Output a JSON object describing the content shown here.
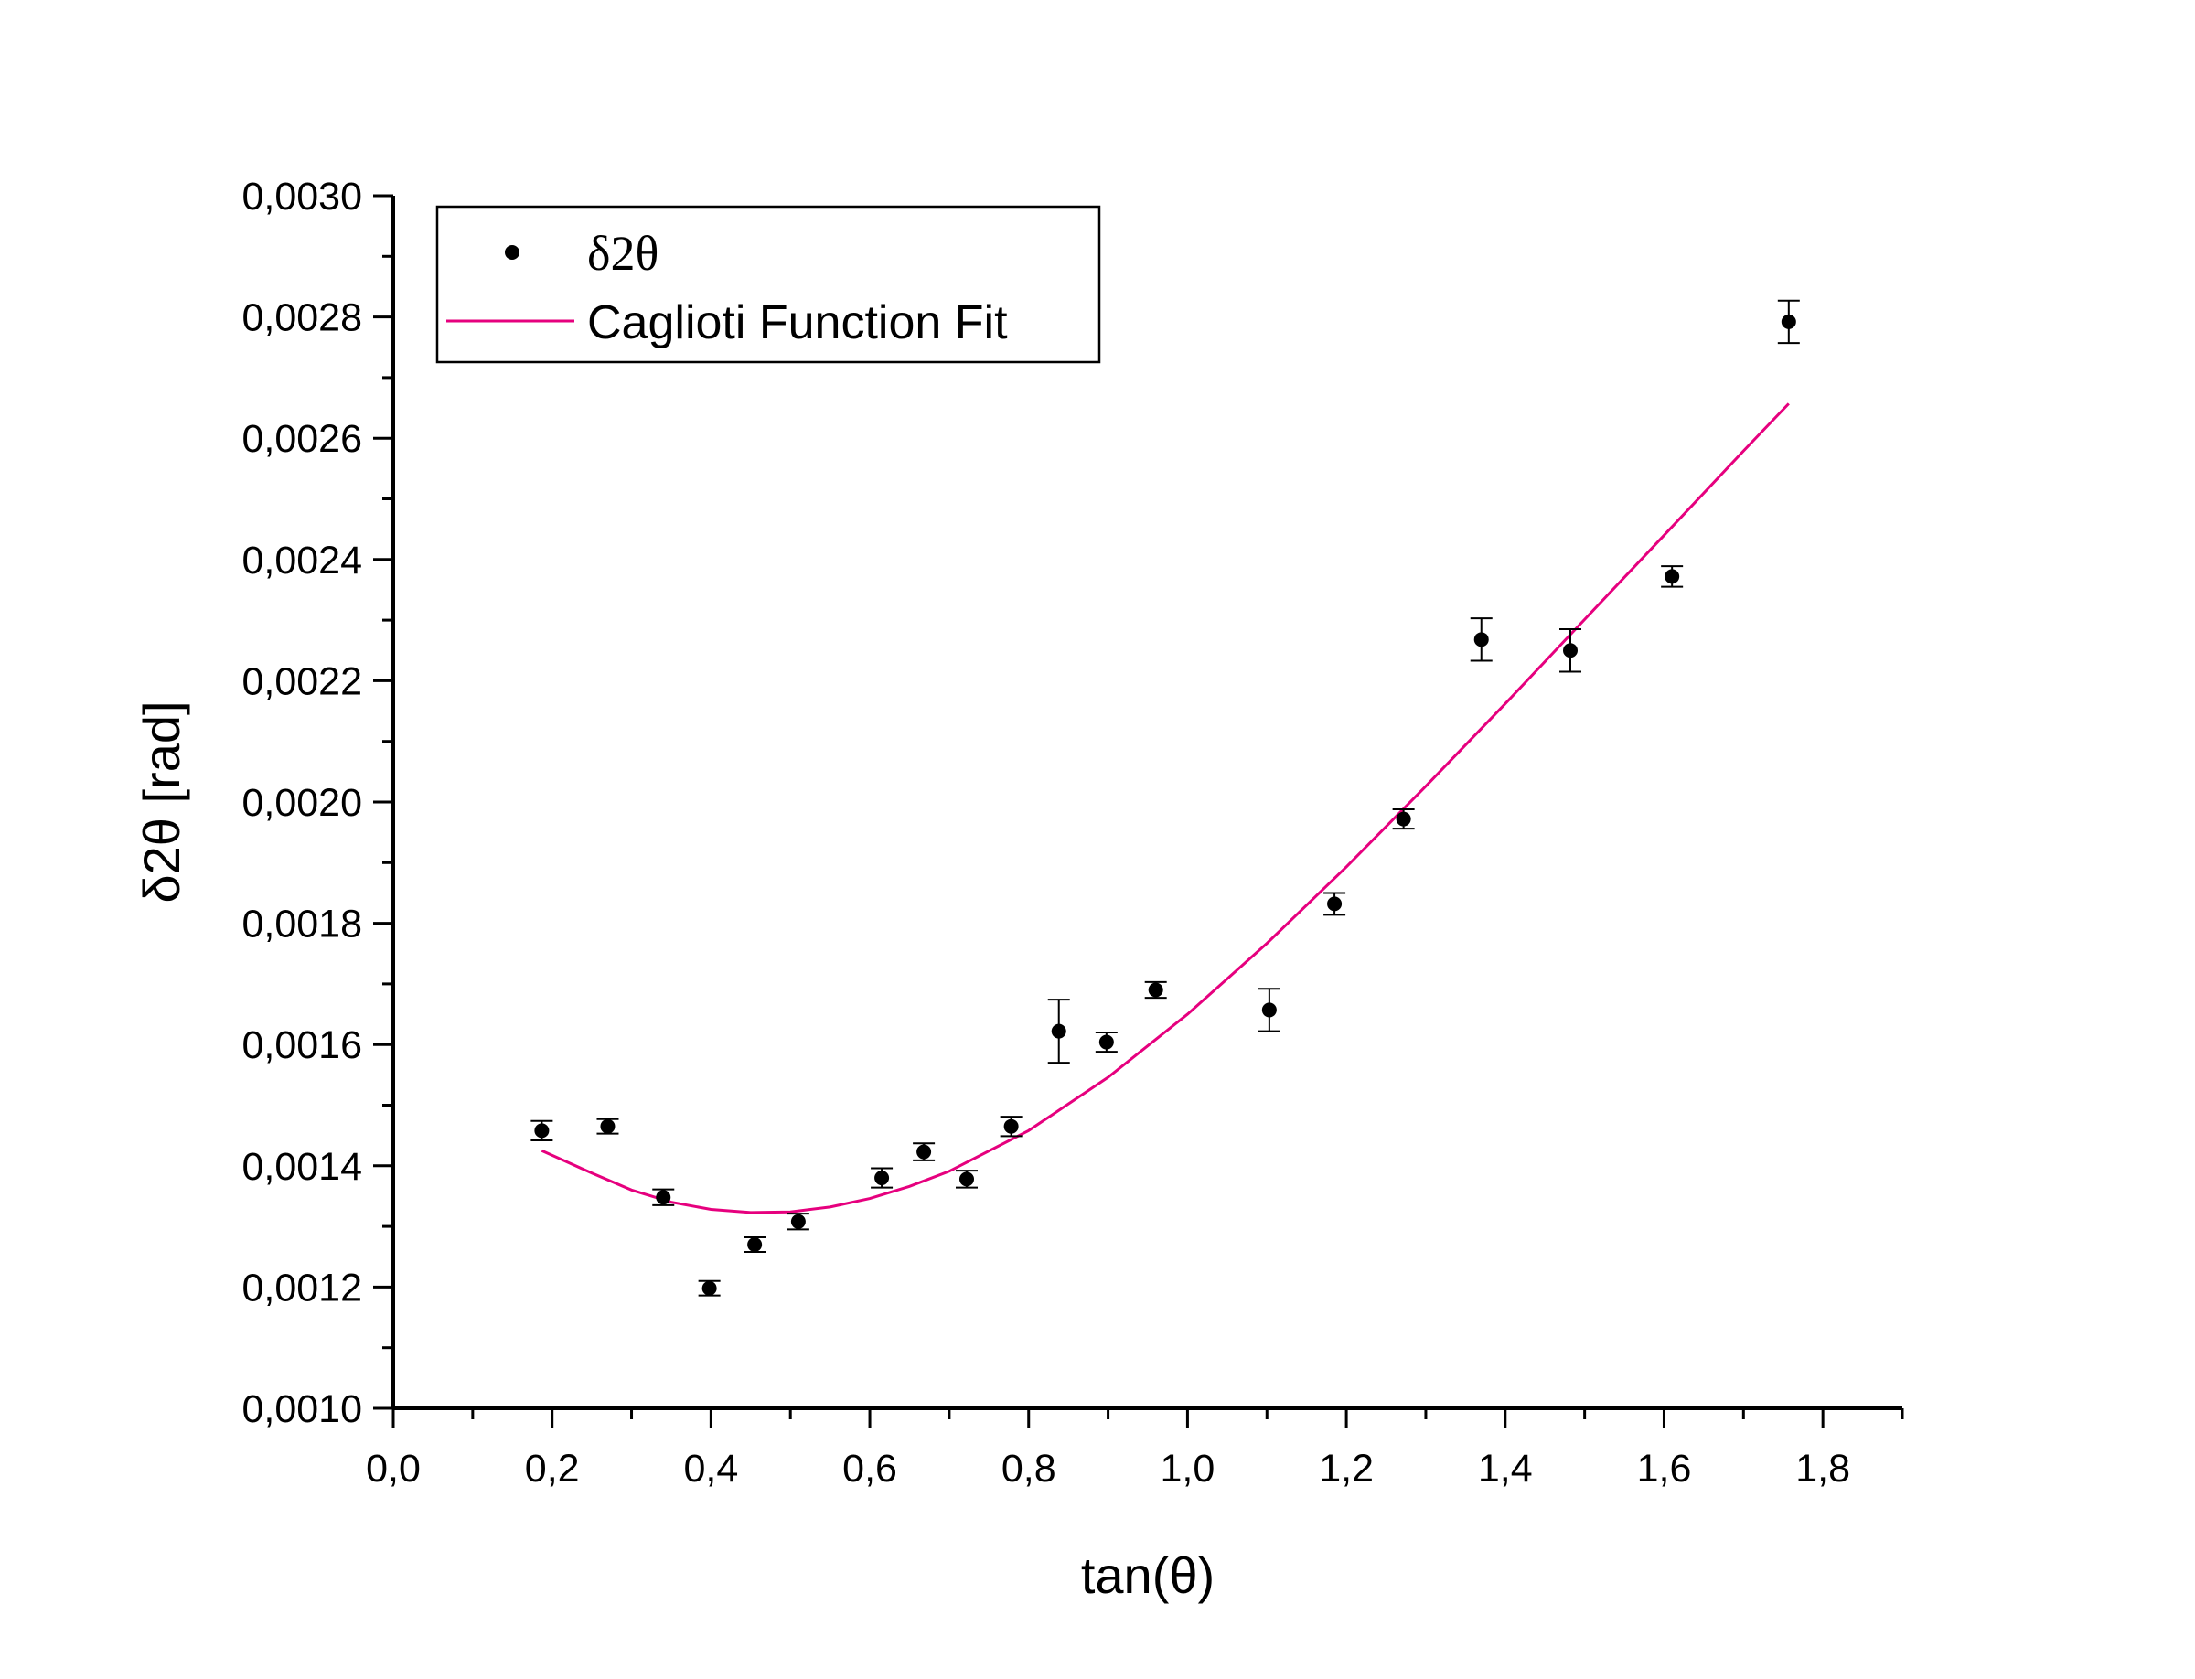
{
  "chart_data": {
    "type": "scatter",
    "xlabel": "tan(θ)",
    "ylabel": "δ2θ [rad]",
    "xlim": [
      0.0,
      1.9
    ],
    "ylim": [
      0.001,
      0.003
    ],
    "x_ticks": [
      "0,0",
      "0,2",
      "0,4",
      "0,6",
      "0,8",
      "1,0",
      "1,2",
      "1,4",
      "1,6",
      "1,8"
    ],
    "y_ticks": [
      "0,0010",
      "0,0012",
      "0,0014",
      "0,0016",
      "0,0018",
      "0,0020",
      "0,0022",
      "0,0024",
      "0,0026",
      "0,0028",
      "0,0030"
    ],
    "legend_position": "top-left",
    "series": [
      {
        "name": "δ2θ",
        "kind": "scatter-errorbar",
        "color": "#000000",
        "x": [
          0.187,
          0.27,
          0.34,
          0.398,
          0.455,
          0.51,
          0.615,
          0.668,
          0.722,
          0.778,
          0.838,
          0.898,
          0.96,
          1.103,
          1.185,
          1.272,
          1.37,
          1.482,
          1.61,
          1.757
        ],
        "y": [
          0.001458,
          0.001465,
          0.001348,
          0.001198,
          0.00127,
          0.001308,
          0.00138,
          0.001423,
          0.001378,
          0.001465,
          0.001622,
          0.001604,
          0.00169,
          0.001657,
          0.001832,
          0.001972,
          0.002268,
          0.00225,
          0.002372,
          0.002792
        ],
        "err": [
          1.6e-05,
          1.2e-05,
          1.3e-05,
          1.2e-05,
          1.2e-05,
          1.3e-05,
          1.6e-05,
          1.4e-05,
          1.4e-05,
          1.6e-05,
          5.2e-05,
          1.6e-05,
          1.3e-05,
          3.5e-05,
          1.8e-05,
          1.6e-05,
          3.5e-05,
          3.5e-05,
          1.7e-05,
          3.5e-05
        ]
      },
      {
        "name": "Caglioti Function Fit",
        "kind": "line",
        "color": "#e6007e",
        "x": [
          0.187,
          0.25,
          0.3,
          0.35,
          0.4,
          0.45,
          0.5,
          0.55,
          0.6,
          0.65,
          0.7,
          0.8,
          0.9,
          1.0,
          1.1,
          1.2,
          1.3,
          1.4,
          1.5,
          1.6,
          1.7,
          1.757
        ],
        "y": [
          0.001425,
          0.001388,
          0.00136,
          0.00134,
          0.001328,
          0.001323,
          0.001324,
          0.001332,
          0.001346,
          0.001366,
          0.001391,
          0.001458,
          0.001546,
          0.00165,
          0.001767,
          0.001893,
          0.002026,
          0.002162,
          0.002301,
          0.00244,
          0.002579,
          0.002657
        ]
      }
    ]
  }
}
